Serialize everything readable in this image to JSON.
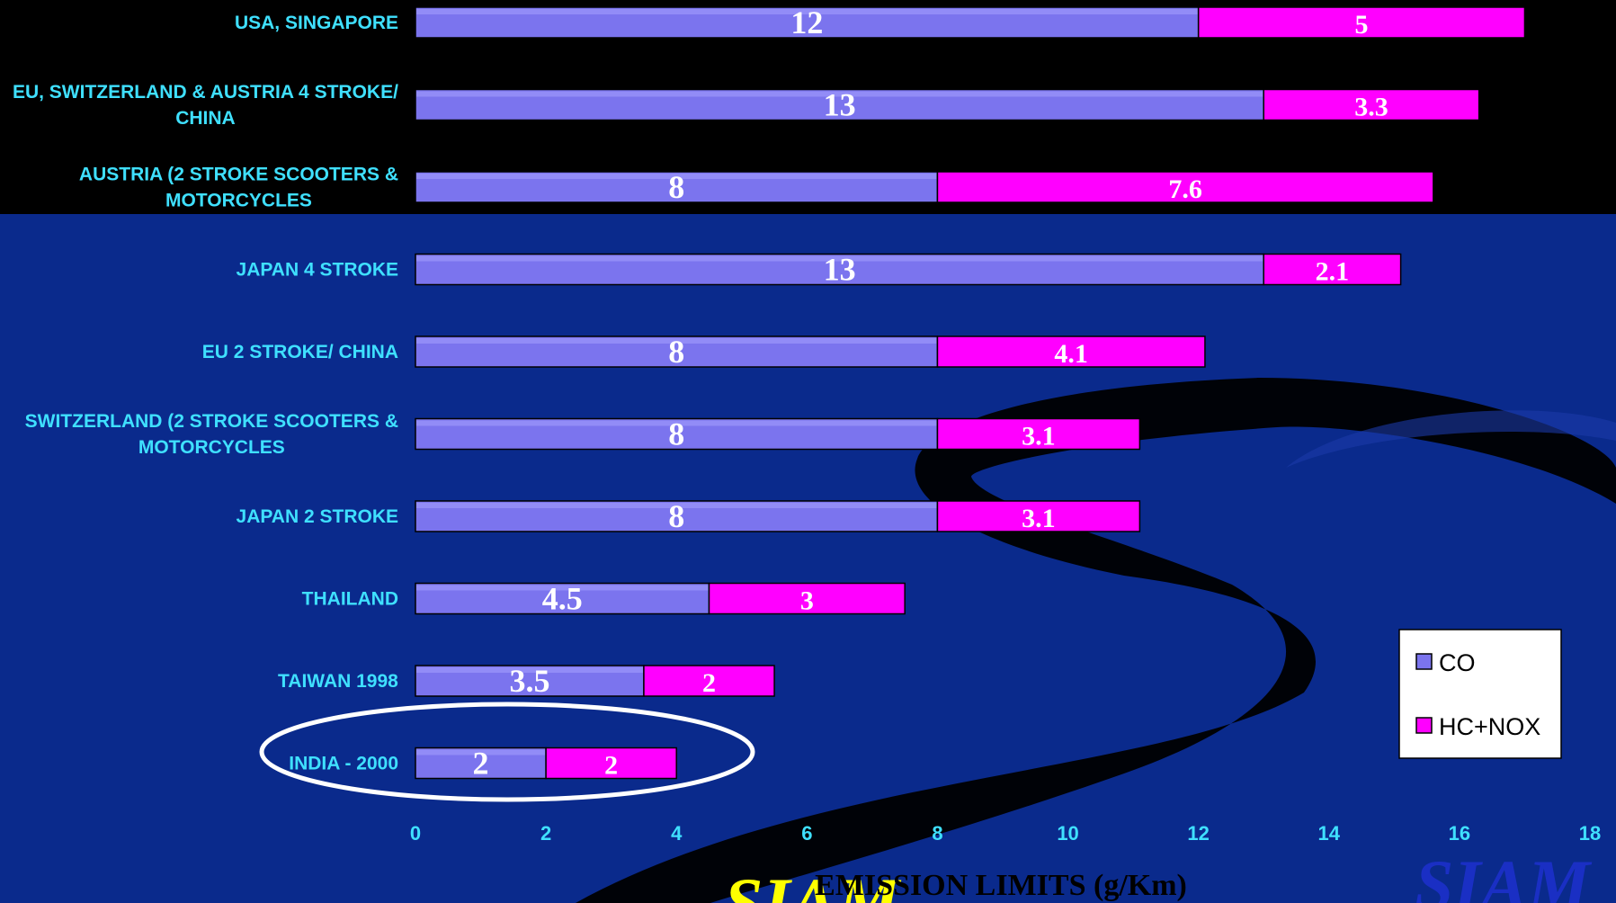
{
  "chart_data": {
    "type": "bar",
    "orientation": "horizontal",
    "stacked": true,
    "categories": [
      "USA, SINGAPORE",
      "EU, SWITZERLAND & AUSTRIA  4 STROKE/ CHINA",
      "AUSTRIA (2 STROKE SCOOTERS & MOTORCYCLES",
      "JAPAN 4 STROKE",
      "EU  2 STROKE/ CHINA",
      "SWITZERLAND (2 STROKE SCOOTERS & MOTORCYCLES",
      "JAPAN  2 STROKE",
      "THAILAND",
      "TAIWAN  1998",
      "INDIA - 2000"
    ],
    "category_lines": [
      [
        "USA, SINGAPORE"
      ],
      [
        "EU, SWITZERLAND & AUSTRIA  4 STROKE/",
        "CHINA"
      ],
      [
        "AUSTRIA (2 STROKE SCOOTERS &",
        "MOTORCYCLES"
      ],
      [
        "JAPAN 4 STROKE"
      ],
      [
        "EU  2 STROKE/ CHINA"
      ],
      [
        "SWITZERLAND (2 STROKE SCOOTERS &",
        "MOTORCYCLES"
      ],
      [
        "JAPAN  2 STROKE"
      ],
      [
        "THAILAND"
      ],
      [
        "TAIWAN  1998"
      ],
      [
        "INDIA - 2000"
      ]
    ],
    "series": [
      {
        "name": "CO",
        "color": "#7b74ee",
        "values": [
          12,
          13,
          8,
          13,
          8,
          8,
          8,
          4.5,
          3.5,
          2
        ]
      },
      {
        "name": "HC+NOX",
        "color": "#ff00ff",
        "values": [
          5,
          3.3,
          7.6,
          2.1,
          4.1,
          3.1,
          3.1,
          3,
          2,
          2
        ]
      }
    ],
    "data_labels": [
      [
        "12",
        "13",
        "8",
        "13",
        "8",
        "8",
        "8",
        "4.5",
        "3.5",
        "2"
      ],
      [
        "5",
        "3.3",
        "7.6",
        "2.1",
        "4.1",
        "3.1",
        "3.1",
        "3",
        "2",
        "2"
      ]
    ],
    "xlim": [
      0,
      18
    ],
    "xticks": [
      0,
      2,
      4,
      6,
      8,
      10,
      12,
      14,
      16,
      18
    ],
    "xlabel": "EMISSION LIMITS (g/Km)",
    "legend_position": "bottom-right",
    "highlighted_category": "INDIA - 2000"
  },
  "watermarks": [
    "SIAM",
    "SIAM"
  ],
  "colors": {
    "background_top": "#000000",
    "background_main": "#0a2a8c",
    "category_text": "#3fe0ff",
    "highlight_ellipse": "#ffffff",
    "watermark_left": "#ffff00",
    "watermark_right": "#1a2fc4"
  }
}
